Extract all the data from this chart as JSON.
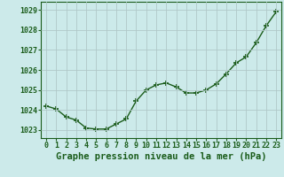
{
  "x": [
    0,
    1,
    2,
    3,
    4,
    5,
    6,
    7,
    8,
    9,
    10,
    11,
    12,
    13,
    14,
    15,
    16,
    17,
    18,
    19,
    20,
    21,
    22,
    23
  ],
  "y": [
    1024.2,
    1024.05,
    1023.65,
    1023.5,
    1023.1,
    1023.05,
    1023.05,
    1023.3,
    1023.55,
    1024.45,
    1025.0,
    1025.25,
    1025.35,
    1025.15,
    1024.85,
    1024.85,
    1025.0,
    1025.3,
    1025.8,
    1026.35,
    1026.65,
    1027.35,
    1028.2,
    1028.9
  ],
  "line_color": "#1a5c1a",
  "marker": "+",
  "markersize": 4,
  "markeredgewidth": 1.2,
  "linewidth": 1.0,
  "background_color": "#cceaea",
  "grid_color": "#b0c8c8",
  "ylabel_ticks": [
    1023,
    1024,
    1025,
    1026,
    1027,
    1028,
    1029
  ],
  "xlabel_ticks": [
    0,
    1,
    2,
    3,
    4,
    5,
    6,
    7,
    8,
    9,
    10,
    11,
    12,
    13,
    14,
    15,
    16,
    17,
    18,
    19,
    20,
    21,
    22,
    23
  ],
  "ylim": [
    1022.6,
    1029.4
  ],
  "xlim": [
    -0.5,
    23.5
  ],
  "xlabel": "Graphe pression niveau de la mer (hPa)",
  "tick_label_color": "#1a5c1a",
  "label_fontsize": 6.0,
  "xlabel_fontsize": 7.5,
  "spine_color": "#1a5c1a"
}
